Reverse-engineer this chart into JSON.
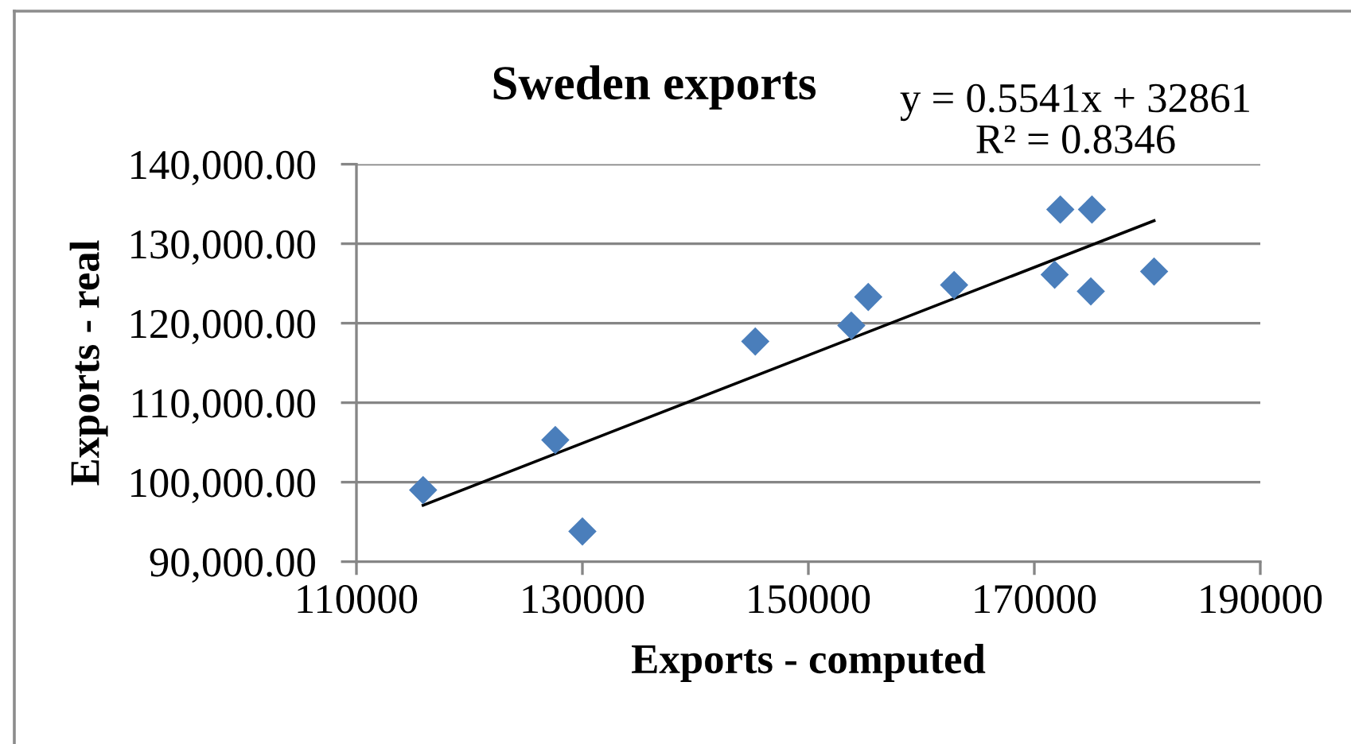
{
  "chart_data": {
    "type": "scatter",
    "title": "Sweden exports",
    "xlabel": "Exports - computed",
    "ylabel": "Exports - real",
    "series": [
      {
        "color": "#4a7ebb",
        "marker": "diamond",
        "x": [
          115900,
          127600,
          130000,
          145300,
          153800,
          155300,
          162900,
          171800,
          172300,
          175000,
          175100,
          180600
        ],
        "values": [
          99000,
          105300,
          93800,
          117700,
          119700,
          123300,
          124800,
          126100,
          134300,
          124000,
          134300,
          126500
        ]
      },
      {
        "type": "line",
        "color": "#000000",
        "marker": "none",
        "line_style": "solid",
        "x": [
          115900,
          180600
        ],
        "values": [
          97100,
          132900
        ]
      }
    ],
    "annotations": [
      "y = 0.5541x + 32861",
      "R² = 0.8346"
    ],
    "xlim": [
      110000,
      190000
    ],
    "xticks": [
      110000,
      130000,
      150000,
      170000,
      190000
    ],
    "ylim": [
      90000,
      140000
    ],
    "yticks": [
      {
        "value": 90000,
        "label": "90,000.00"
      },
      {
        "value": 100000,
        "label": "100,000.00"
      },
      {
        "value": 110000,
        "label": "110,000.00"
      },
      {
        "value": 120000,
        "label": "120,000.00"
      },
      {
        "value": 130000,
        "label": "130,000.00"
      },
      {
        "value": 140000,
        "label": "140,000.00"
      }
    ],
    "grid": "y"
  }
}
